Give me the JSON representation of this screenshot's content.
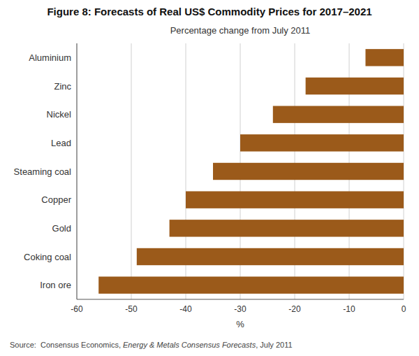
{
  "chart_data": {
    "type": "bar",
    "orientation": "horizontal",
    "title": "Figure 8: Forecasts of Real US$ Commodity Prices for 2017–2021",
    "subtitle": "Percentage change from July 2011",
    "x_label": "%",
    "categories": [
      "Iron ore",
      "Coking coal",
      "Gold",
      "Copper",
      "Steaming coal",
      "Lead",
      "Nickel",
      "Zinc",
      "Aluminium"
    ],
    "values": [
      -56,
      -49,
      -43,
      -40,
      -35,
      -30,
      -24,
      -18,
      -7
    ],
    "color": "#9B5A1A",
    "xlim": [
      -60,
      0
    ],
    "xticks": [
      -60,
      -50,
      -40,
      -30,
      -20,
      -10,
      0
    ],
    "grid": true,
    "source": [
      "Source:  Consensus Economics, ",
      "Energy & Metals Consensus Forecasts",
      ", July 2011"
    ]
  }
}
